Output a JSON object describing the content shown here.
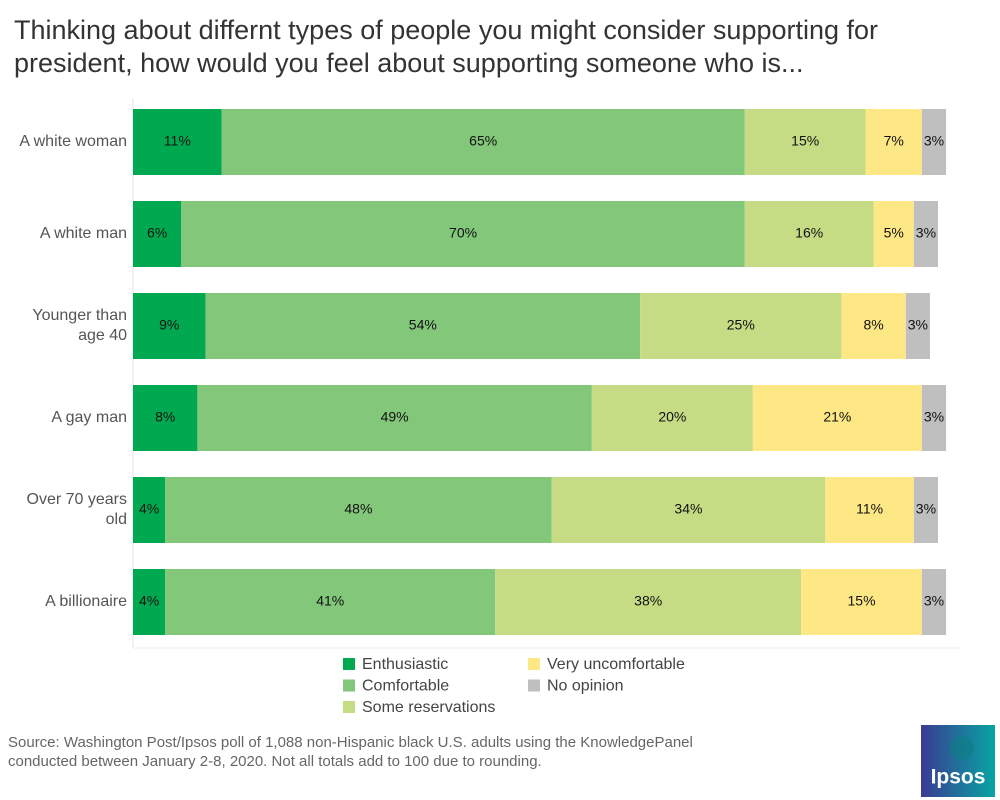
{
  "chart_data": {
    "type": "bar",
    "orientation": "horizontal",
    "stacked": true,
    "title": "Thinking about differnt types of people you might consider supporting for president, how would you feel about supporting someone who is...",
    "categories": [
      "A white woman",
      "A white man",
      "Younger than age 40",
      "A gay man",
      "Over 70 years old",
      "A billionaire"
    ],
    "series": [
      {
        "name": "Enthusiastic",
        "color": "#00a94f",
        "values": [
          11,
          6,
          9,
          8,
          4,
          4
        ],
        "value_labels": [
          "11%",
          "6%",
          "9%",
          "8%",
          "4%",
          "4%"
        ]
      },
      {
        "name": "Comfortable",
        "color": "#83c77a",
        "values": [
          65,
          70,
          54,
          49,
          48,
          41
        ],
        "value_labels": [
          "65%",
          "70%",
          "54%",
          "49%",
          "48%",
          "41%"
        ]
      },
      {
        "name": "Some reservations",
        "color": "#c5dc84",
        "values": [
          15,
          16,
          25,
          20,
          34,
          38
        ],
        "value_labels": [
          "15%",
          "16%",
          "25%",
          "20%",
          "34%",
          "38%"
        ]
      },
      {
        "name": "Very uncomfortable",
        "color": "#fee785",
        "values": [
          7,
          5,
          8,
          21,
          11,
          15
        ],
        "value_labels": [
          "7%",
          "5%",
          "8%",
          "21%",
          "11%",
          "15%"
        ]
      },
      {
        "name": "No opinion",
        "color": "#bfbfbf",
        "values": [
          3,
          3,
          3,
          3,
          3,
          3
        ],
        "value_labels": [
          "3%",
          "3%",
          "3%",
          "3%",
          "3%",
          "3%"
        ]
      }
    ],
    "source": "Source: Washington Post/Ipsos poll of 1,088 non-Hispanic black U.S. adults using the KnowledgePanel conducted between January 2-8, 2020. Not all totals add to 100 due to rounding.",
    "logo": "Ipsos"
  }
}
